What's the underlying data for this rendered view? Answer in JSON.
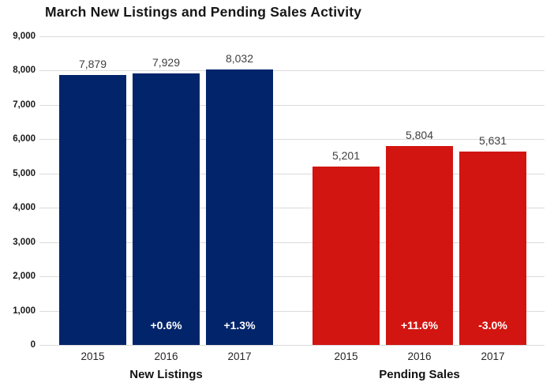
{
  "title": "March New Listings and Pending Sales Activity",
  "colors": {
    "new_listings_bar": "#02246B",
    "pending_sales_bar": "#D21510",
    "gridline": "#DBDBDB",
    "title_text": "#161616",
    "value_label_text": "#3F3F3F",
    "percent_label_text": "#FFFFFF",
    "background": "#FFFFFF"
  },
  "chart_data": {
    "type": "bar",
    "title": "March New Listings and Pending Sales Activity",
    "categories": [
      "2015",
      "2016",
      "2017"
    ],
    "series": [
      {
        "name": "New Listings",
        "color": "#02246B",
        "values": [
          7879,
          7929,
          8032
        ],
        "value_labels": [
          "7,879",
          "7,929",
          "8,032"
        ],
        "change_labels": [
          "",
          "+0.6%",
          "+1.3%"
        ]
      },
      {
        "name": "Pending Sales",
        "color": "#D21510",
        "values": [
          5201,
          5804,
          5631
        ],
        "value_labels": [
          "5,201",
          "5,804",
          "5,631"
        ],
        "change_labels": [
          "",
          "+11.6%",
          "-3.0%"
        ]
      }
    ],
    "xlabel": "",
    "ylabel": "",
    "ylim": [
      0,
      9000
    ],
    "ytick_step": 1000,
    "ytick_labels": [
      "0",
      "1,000",
      "2,000",
      "3,000",
      "4,000",
      "5,000",
      "6,000",
      "7,000",
      "8,000",
      "9,000"
    ],
    "grid": true,
    "legend_position": "none"
  }
}
